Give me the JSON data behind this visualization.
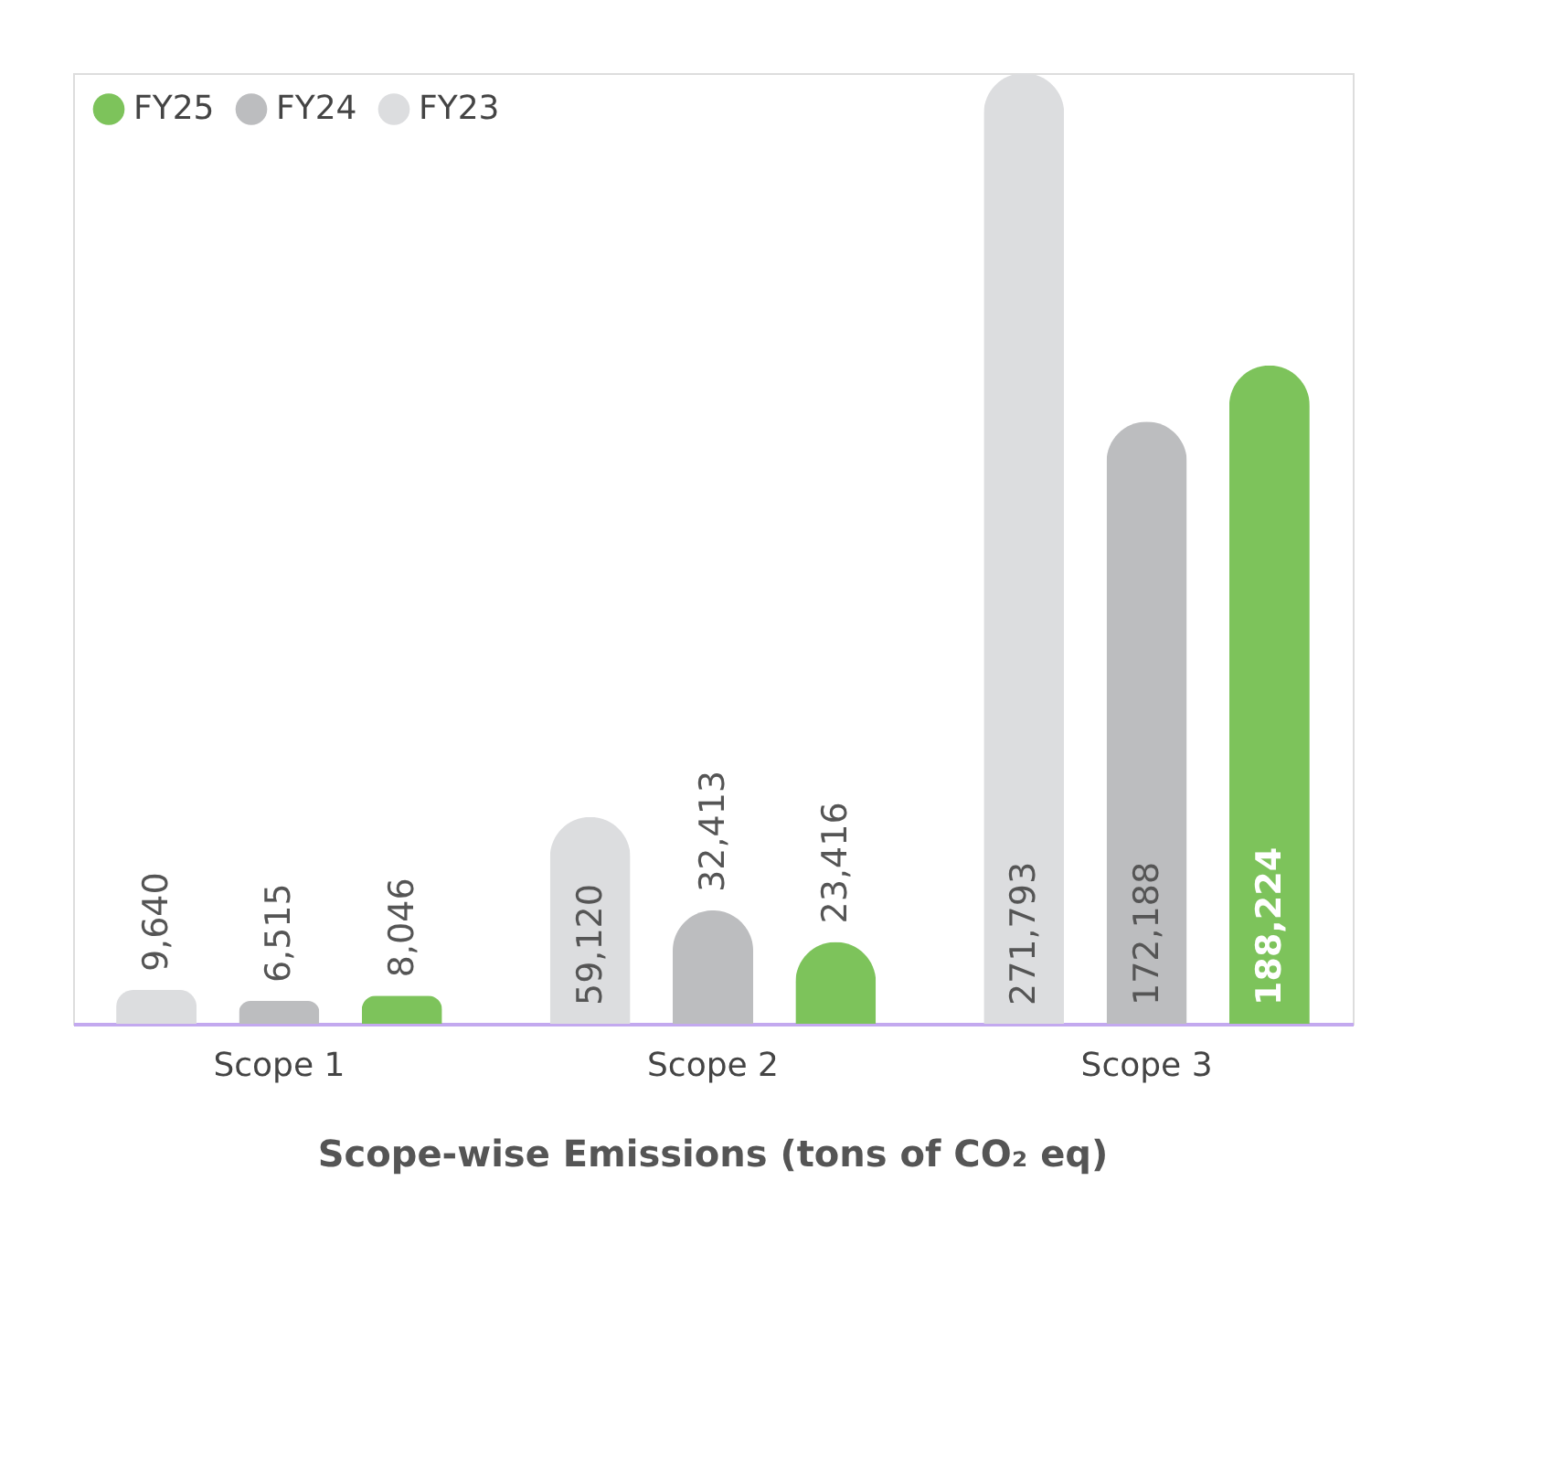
{
  "chart_data": {
    "type": "bar",
    "title": "Scope-wise Emissions (tons of CO₂ eq)",
    "categories": [
      "Scope 1",
      "Scope 2",
      "Scope 3"
    ],
    "series": [
      {
        "name": "FY23",
        "color": "#dcdddf",
        "values": [
          9640,
          59120,
          271793
        ],
        "value_labels": [
          "9,640",
          "59,120",
          "271,793"
        ]
      },
      {
        "name": "FY24",
        "color": "#bcbdbf",
        "values": [
          6515,
          32413,
          172188
        ],
        "value_labels": [
          "6,515",
          "32,413",
          "172,188"
        ]
      },
      {
        "name": "FY25",
        "color": "#7dc35b",
        "values": [
          8046,
          23416,
          188224
        ],
        "value_labels": [
          "8,046",
          "23,416",
          "188,224"
        ]
      }
    ],
    "legend": "top left",
    "grid": false
  }
}
